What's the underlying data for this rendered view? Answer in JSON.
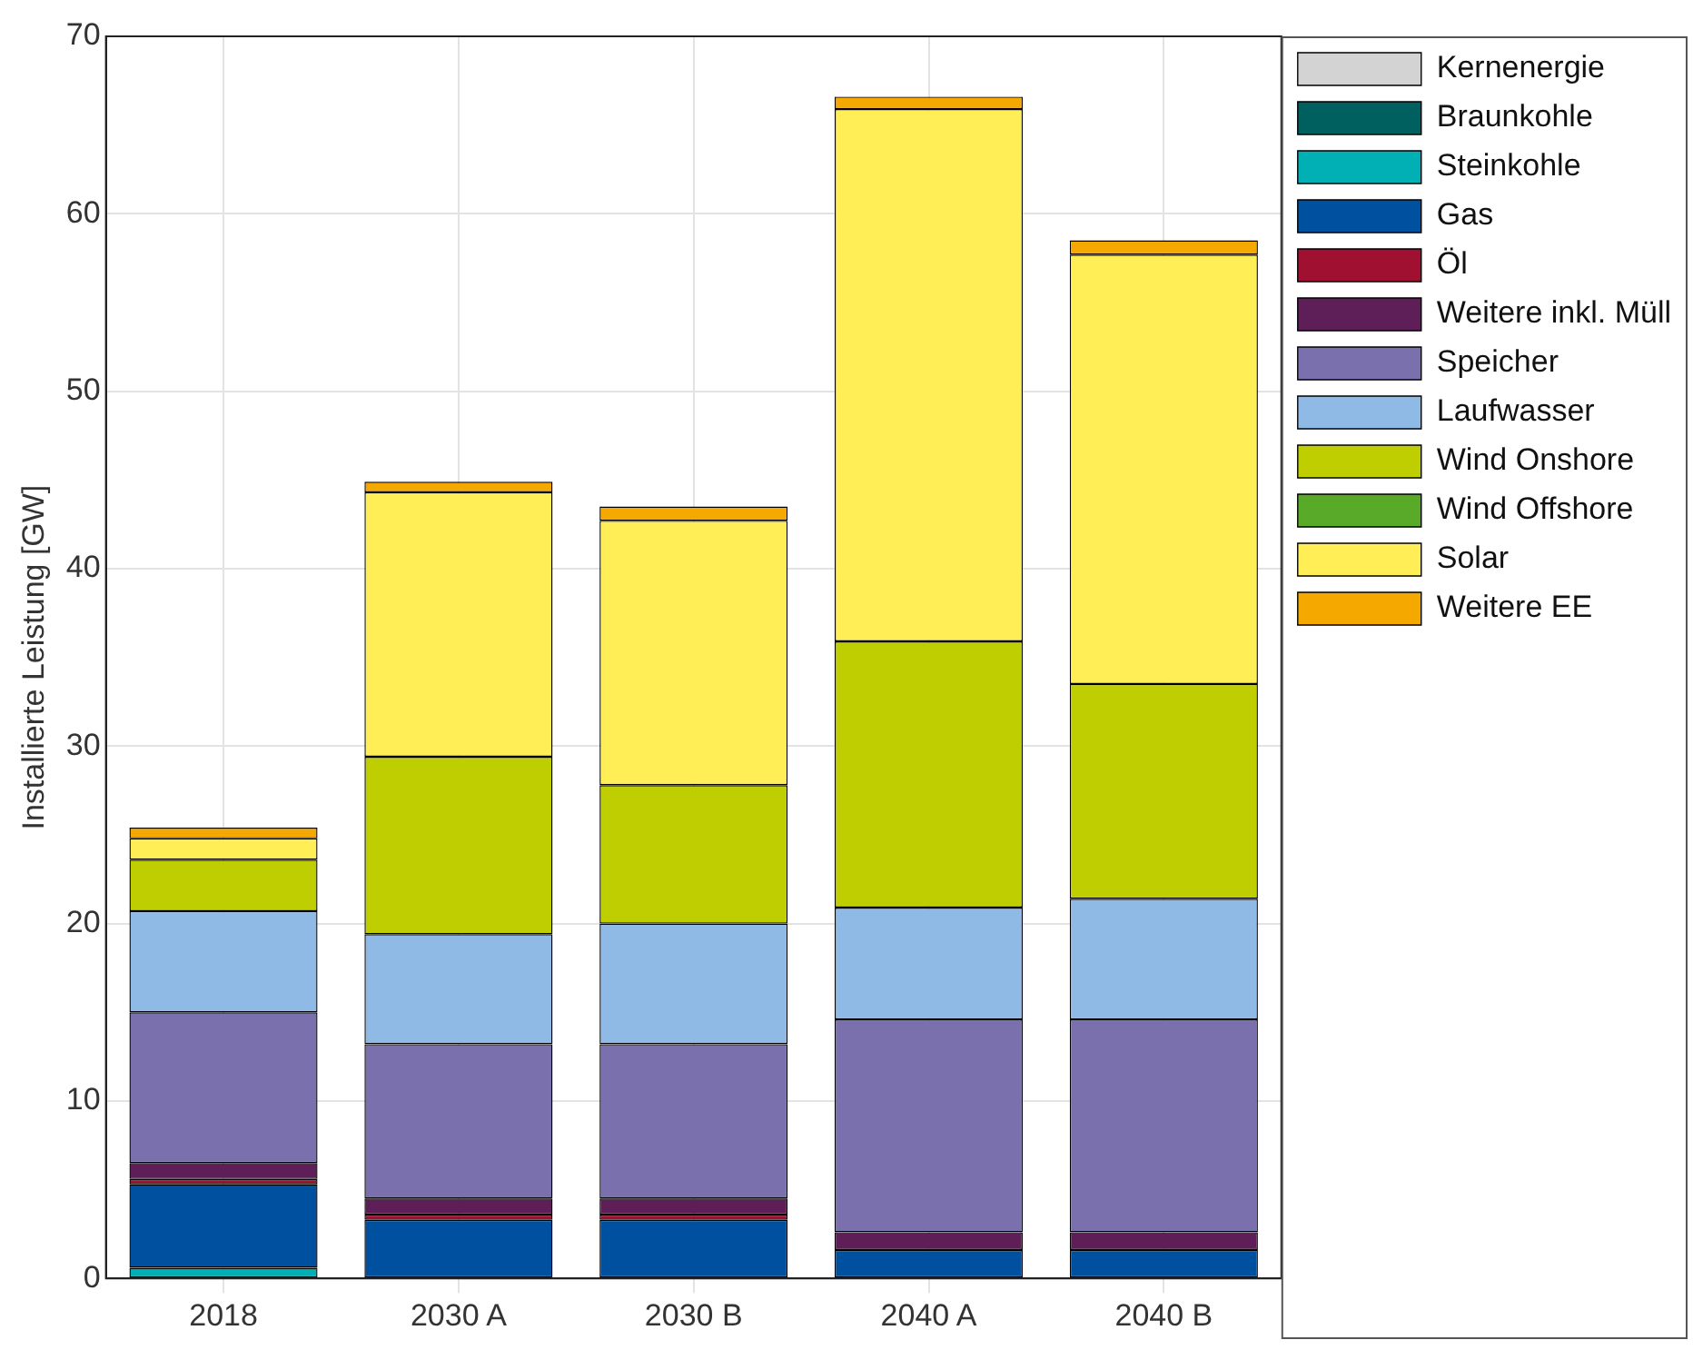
{
  "chart_data": {
    "type": "bar",
    "stacked": true,
    "ylabel": "Installierte Leistung [GW]",
    "categories": [
      "2018",
      "2030 A",
      "2030 B",
      "2040 A",
      "2040 B"
    ],
    "ylim": [
      0,
      70
    ],
    "yticks": [
      0,
      10,
      20,
      30,
      40,
      50,
      60,
      70
    ],
    "grid": true,
    "legend": "top right",
    "series": [
      {
        "name": "Kernenergie",
        "color": "#d3d3d3",
        "values": [
          null,
          null,
          null,
          null,
          null
        ]
      },
      {
        "name": "Braunkohle",
        "color": "#005f5f",
        "values": [
          null,
          null,
          null,
          null,
          null
        ]
      },
      {
        "name": "Steinkohle",
        "color": "#00b0b4",
        "values": [
          0.6,
          null,
          null,
          null,
          null
        ]
      },
      {
        "name": "Gas",
        "color": "#0050a0",
        "values": [
          4.7,
          3.3,
          3.3,
          1.6,
          1.6
        ]
      },
      {
        "name": "Öl",
        "color": "#a01030",
        "values": [
          0.3,
          0.3,
          0.3,
          null,
          null
        ]
      },
      {
        "name": "Weitere inkl. Müll",
        "color": "#5e1f58",
        "values": [
          0.9,
          0.9,
          0.9,
          1.0,
          1.0
        ]
      },
      {
        "name": "Speicher",
        "color": "#7a70ad",
        "values": [
          8.5,
          8.7,
          8.7,
          12.0,
          12.0
        ]
      },
      {
        "name": "Laufwasser",
        "color": "#8fbae5",
        "values": [
          5.7,
          6.2,
          6.8,
          6.3,
          6.8
        ]
      },
      {
        "name": "Wind Onshore",
        "color": "#bfce00",
        "values": [
          2.9,
          10.0,
          7.8,
          15.0,
          12.1
        ]
      },
      {
        "name": "Wind Offshore",
        "color": "#5aaa2a",
        "values": [
          null,
          null,
          null,
          null,
          null
        ]
      },
      {
        "name": "Solar",
        "color": "#ffee55",
        "values": [
          1.2,
          14.9,
          14.9,
          30.0,
          24.2
        ]
      },
      {
        "name": "Weitere EE",
        "color": "#f5a800",
        "values": [
          0.6,
          0.6,
          0.8,
          0.7,
          0.8
        ]
      }
    ]
  }
}
